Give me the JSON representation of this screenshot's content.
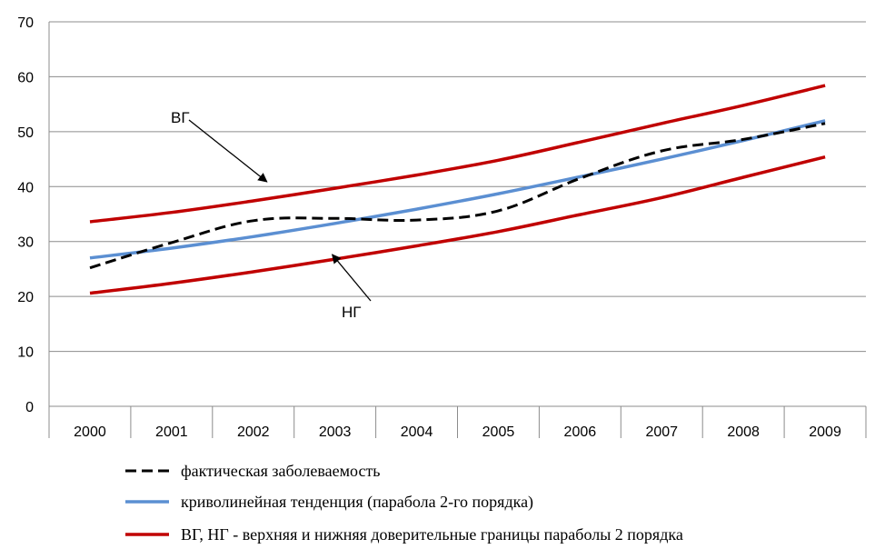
{
  "chart_data": {
    "type": "line",
    "title": "",
    "xlabel": "",
    "ylabel": "",
    "ylim": [
      0,
      70
    ],
    "y_ticks": [
      "0",
      "10",
      "20",
      "30",
      "40",
      "50",
      "60",
      "70"
    ],
    "categories": [
      "2000",
      "2001",
      "2002",
      "2003",
      "2004",
      "2005",
      "2006",
      "2007",
      "2008",
      "2009"
    ],
    "grid": "horizontal",
    "legend_position": "bottom",
    "series": [
      {
        "name": "фактическая заболеваемость",
        "color": "#000000",
        "style": "dashed",
        "values": [
          25.2,
          29.8,
          33.8,
          34.2,
          33.9,
          35.6,
          41.5,
          46.5,
          48.6,
          51.5
        ]
      },
      {
        "name": "криволинейная тенденция (парабола 2-го порядка)",
        "color": "#5B8FD2",
        "style": "solid",
        "values": [
          27.0,
          28.8,
          30.9,
          33.3,
          35.9,
          38.7,
          41.8,
          45.0,
          48.4,
          52.0
        ]
      },
      {
        "name": "ВГ, НГ - верхняя и нижняя доверительные границы параболы 2 порядка",
        "color": "#C00000",
        "style": "solid",
        "values": [
          33.6,
          35.3,
          37.4,
          39.7,
          42.1,
          44.8,
          48.1,
          51.5,
          54.8,
          58.4
        ]
      },
      {
        "name": "",
        "color": "#C00000",
        "style": "solid",
        "values": [
          20.6,
          22.4,
          24.5,
          26.8,
          29.2,
          31.8,
          34.9,
          38.0,
          41.7,
          45.4
        ]
      }
    ],
    "annotations": [
      {
        "text": "ВГ",
        "target_index": 2,
        "target_series": 2
      },
      {
        "text": "НГ",
        "target_index": 3,
        "target_series": 3
      }
    ]
  }
}
